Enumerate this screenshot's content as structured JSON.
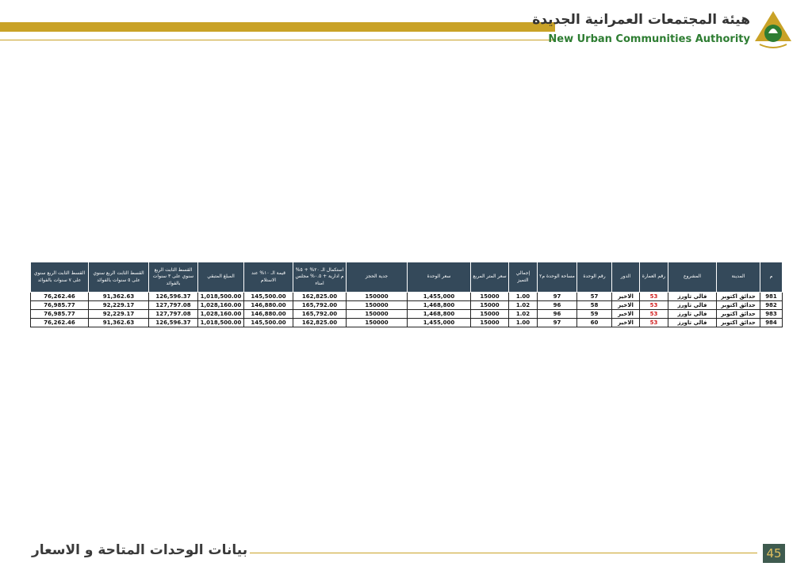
{
  "header": {
    "title_ar": "هيئة المجتمعات العمرانية الجديدة",
    "title_en": "New Urban Communities Authority"
  },
  "table": {
    "headers": [
      "م",
      "المدينة",
      "المشروع",
      "رقم العمارة",
      "الدور",
      "رقم الوحدة",
      "مساحة الوحدة م٢",
      "إجمالي التميز",
      "سعر المتر المربع",
      "سعر الوحدة",
      "جدية الحجز",
      "استكمال الـ ٢٠% + ٥% م ادارية + ٠.٥% مجلس امناء",
      "قيمة الـ ١٠% عند الاستلام",
      "المبلغ المتبقي",
      "القسط الثابت الربع سنوي على ٣ سنوات بالفوائد",
      "القسط الثابت الربع سنوي على ٥ سنوات بالفوائد",
      "القسط الثابت الربع سنوي على ٧ سنوات بالفوائد"
    ],
    "rows": [
      [
        "981",
        "حدائق اكتوبر",
        "فالي تاورز",
        "53",
        "الاخير",
        "57",
        "97",
        "1.00",
        "15000",
        "1,455,000",
        "150000",
        "162,825.00",
        "145,500.00",
        "1,018,500.00",
        "126,596.37",
        "91,362.63",
        "76,262.46"
      ],
      [
        "982",
        "حدائق اكتوبر",
        "فالي تاورز",
        "53",
        "الاخير",
        "58",
        "96",
        "1.02",
        "15000",
        "1,468,800",
        "150000",
        "165,792.00",
        "146,880.00",
        "1,028,160.00",
        "127,797.08",
        "92,229.17",
        "76,985.77"
      ],
      [
        "983",
        "حدائق اكتوبر",
        "فالي تاورز",
        "53",
        "الاخير",
        "59",
        "96",
        "1.02",
        "15000",
        "1,468,800",
        "150000",
        "165,792.00",
        "146,880.00",
        "1,028,160.00",
        "127,797.08",
        "92,229.17",
        "76,985.77"
      ],
      [
        "984",
        "حدائق اكتوبر",
        "فالي تاورز",
        "53",
        "الاخير",
        "60",
        "97",
        "1.00",
        "15000",
        "1,455,000",
        "150000",
        "162,825.00",
        "145,500.00",
        "1,018,500.00",
        "126,596.37",
        "91,362.63",
        "76,262.46"
      ]
    ]
  },
  "footer": {
    "title": "بيانات الوحدات المتاحة و الاسعار",
    "page_number": "45"
  }
}
